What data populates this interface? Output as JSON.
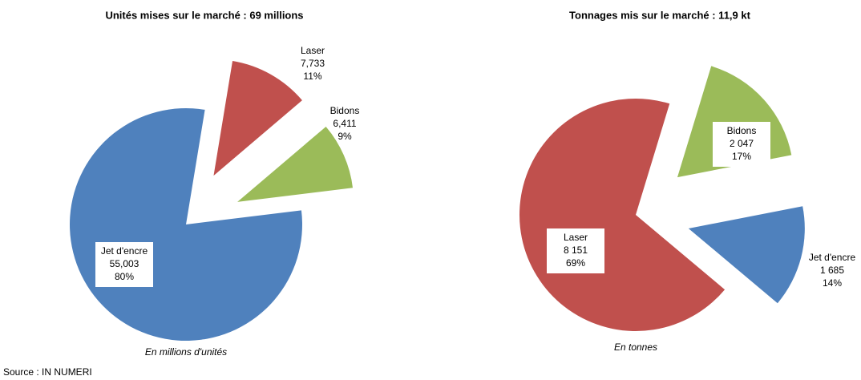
{
  "chart_data": [
    {
      "type": "pie",
      "title": "Unités  mises sur le marché : 69 millions",
      "categories": [
        "Jet d'encre",
        "Laser",
        "Bidons"
      ],
      "values": [
        55.003,
        7.733,
        6.411
      ],
      "value_labels": [
        "55,003",
        "7,733",
        "6,411"
      ],
      "percentages": [
        80,
        11,
        9
      ],
      "percentage_labels": [
        "80%",
        "11%",
        "9%"
      ],
      "colors": [
        "#4f81bd",
        "#c0504d",
        "#9bbb59"
      ],
      "note": "En millions d'unités"
    },
    {
      "type": "pie",
      "title": "Tonnages mis sur le marché : 11,9 kt",
      "categories": [
        "Laser",
        "Bidons",
        "Jet d'encre"
      ],
      "values": [
        8151,
        2047,
        1685
      ],
      "value_labels": [
        "8 151",
        "2 047",
        "1 685"
      ],
      "percentages": [
        69,
        17,
        14
      ],
      "percentage_labels": [
        "69%",
        "17%",
        "14%"
      ],
      "colors": [
        "#c0504d",
        "#9bbb59",
        "#4f81bd"
      ],
      "note": "En tonnes"
    }
  ],
  "source": "Source : IN NUMERI"
}
